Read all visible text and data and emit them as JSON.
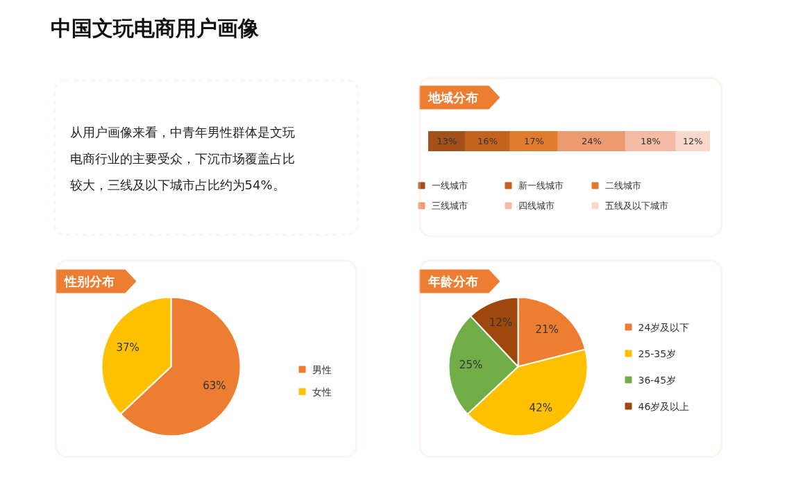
{
  "chart_data": [
    {
      "type": "other",
      "title": "中国文玩电商用户画像",
      "annotations": [
        "从用户画像来看，中青年男性群体是文玩电商行业的主要受众，下沉市场覆盖占比较大，三线及以下城市占比约为54%。"
      ]
    },
    {
      "type": "bar",
      "title": "地域分布",
      "orientation": "horizontal",
      "stacked": true,
      "categories": [
        null
      ],
      "legend": "bottom",
      "series": [
        {
          "name": "一线城市",
          "color": "#a4501a",
          "values": [
            13
          ],
          "value_labels": [
            "13%"
          ]
        },
        {
          "name": "新一线城市",
          "color": "#c4621f",
          "values": [
            16
          ],
          "value_labels": [
            "16%"
          ]
        },
        {
          "name": "二线城市",
          "color": "#e07b2e",
          "values": [
            17
          ],
          "value_labels": [
            "17%"
          ]
        },
        {
          "name": "三线城市",
          "color": "#ee9a70",
          "values": [
            24
          ],
          "value_labels": [
            "24%"
          ]
        },
        {
          "name": "四线城市",
          "color": "#f4bca4",
          "values": [
            18
          ],
          "value_labels": [
            "18%"
          ]
        },
        {
          "name": "五线及以下城市",
          "color": "#f8d8ca",
          "values": [
            12
          ],
          "value_labels": [
            "12%"
          ]
        }
      ]
    },
    {
      "type": "pie",
      "title": "性别分布",
      "categories": [
        "男性",
        "女性"
      ],
      "values": [
        63,
        37
      ],
      "colors": [
        "#ed7d31",
        "#ffc000"
      ],
      "value_labels": [
        "63%",
        "37%"
      ],
      "legend": "right"
    },
    {
      "type": "pie",
      "title": "年龄分布",
      "categories": [
        "24岁及以下",
        "25-35岁",
        "36-45岁",
        "46岁及以上"
      ],
      "values": [
        21,
        42,
        25,
        12
      ],
      "colors": [
        "#ed7d31",
        "#ffc000",
        "#70ad47",
        "#9e480e"
      ],
      "value_labels": [
        "21%",
        "42%",
        "25%",
        "12%"
      ],
      "legend": "right"
    }
  ]
}
